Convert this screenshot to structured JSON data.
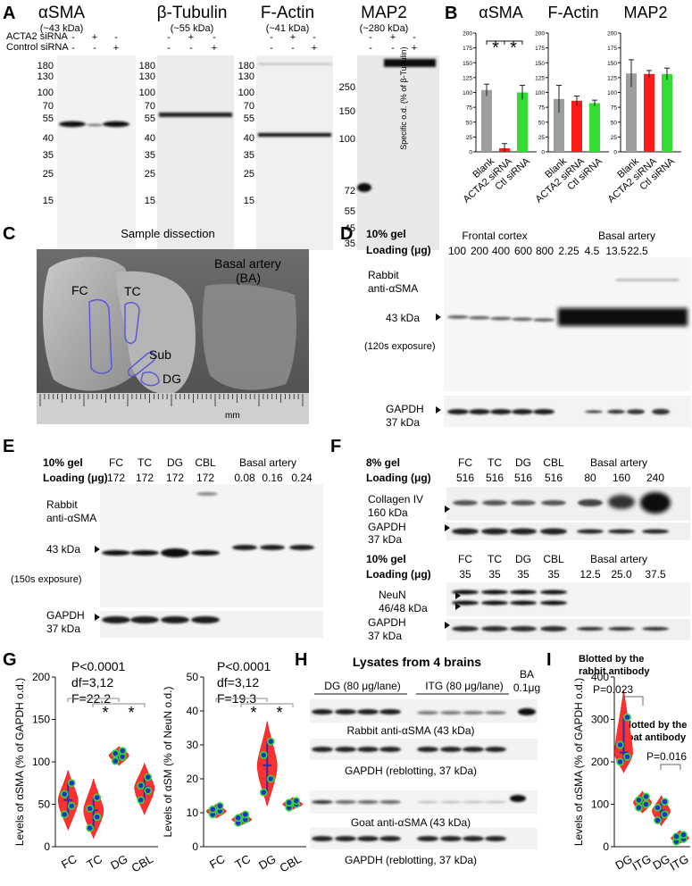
{
  "panels": {
    "A": {
      "letter": "A",
      "gels": [
        {
          "title": "αSMA",
          "kda": "(~43 kDa)"
        },
        {
          "title": "β-Tubulin",
          "kda": "(~55 kDa)"
        },
        {
          "title": "F-Actin",
          "kda": "(~41 kDa)"
        },
        {
          "title": "MAP2",
          "kda": "(~280 kDa)"
        }
      ],
      "row_labels": [
        "ACTA2 siRNA",
        "Control siRNA"
      ],
      "row1_signs": [
        "-",
        "+",
        "-"
      ],
      "row2_signs": [
        "-",
        "-",
        "+"
      ],
      "ladder1": [
        "180",
        "130",
        "100",
        "70",
        "55",
        "40",
        "35",
        "25",
        "15"
      ],
      "ladder_map2": [
        "250",
        "150",
        "100",
        "72",
        "55",
        "45",
        "35"
      ]
    },
    "B": {
      "letter": "B",
      "ylabel": "Specific o.d. (% of β-Tubulin)",
      "yticks": [
        "0",
        "25",
        "50",
        "75",
        "100",
        "125",
        "150",
        "175",
        "200"
      ],
      "sig": "*",
      "categories": [
        "Blank",
        "ACTA2 siRNA",
        "Ctl siRNA"
      ]
    },
    "C": {
      "letter": "C",
      "title": "Sample dissection",
      "labels": {
        "fc": "FC",
        "tc": "TC",
        "sub": "Sub",
        "dg": "DG",
        "ba1": "Basal artery",
        "ba2": "(BA)",
        "mm": "mm"
      }
    },
    "D": {
      "letter": "D",
      "gel": "10% gel",
      "loading": "Loading (μg)",
      "group1": "Frontal cortex",
      "group2": "Basal artery",
      "loads": [
        "100",
        "200",
        "400",
        "600",
        "800",
        "2.25",
        "4.5",
        "13.5",
        "22.5"
      ],
      "ab1": "Rabbit",
      "ab2": "anti-αSMA",
      "band": "43 kDa",
      "exposure": "(120s exposure)",
      "gapdh1": "GAPDH",
      "gapdh2": "37 kDa"
    },
    "E": {
      "letter": "E",
      "gel": "10% gel",
      "loading": "Loading (μg)",
      "lanes": [
        "FC",
        "TC",
        "DG",
        "CBL",
        "Basal artery"
      ],
      "loads": [
        "172",
        "172",
        "172",
        "172",
        "0.08",
        "0.16",
        "0.24"
      ],
      "ab1": "Rabbit",
      "ab2": "anti-αSMA",
      "band": "43 kDa",
      "exposure": "(150s exposure)",
      "gapdh1": "GAPDH",
      "gapdh2": "37 kDa"
    },
    "F": {
      "letter": "F",
      "gel1": "8% gel",
      "gel2": "10% gel",
      "loading": "Loading (μg)",
      "lanes": [
        "FC",
        "TC",
        "DG",
        "CBL",
        "Basal artery"
      ],
      "loads1": [
        "516",
        "516",
        "516",
        "516",
        "80",
        "160",
        "240"
      ],
      "loads2": [
        "35",
        "35",
        "35",
        "35",
        "12.5",
        "25.0",
        "37.5"
      ],
      "col1": "Collagen IV",
      "col2": "160 kDa",
      "gapdh1": "GAPDH",
      "gapdh2": "37 kDa",
      "neun1": "NeuN",
      "neun2": "46/48 kDa"
    },
    "G": {
      "letter": "G",
      "left": {
        "stats": [
          "P<0.0001",
          "df=3,12",
          "F=22.2"
        ],
        "ylabel": "Levels of αSMA (% of GAPDH o.d.)",
        "yticks": [
          "0",
          "50",
          "100",
          "150",
          "200"
        ]
      },
      "right": {
        "stats": [
          "P<0.0001",
          "df=3,12",
          "F=19.3"
        ],
        "ylabel": "Levels of αSM (% of NeuN o.d.)",
        "yticks": [
          "0",
          "10",
          "20",
          "30",
          "40",
          "50"
        ]
      },
      "categories": [
        "FC",
        "TC",
        "DG",
        "CBL"
      ],
      "sig": "*"
    },
    "H": {
      "letter": "H",
      "title": "Lysates from 4 brains",
      "dg": "DG (80 μg/lane)",
      "itg": "ITG (80 μg/lane)",
      "ba1": "BA",
      "ba2": "0.1μg",
      "rabbit": "Rabbit anti-αSMA (43 kDa)",
      "gapdh": "GAPDH (reblotting, 37 kDa)",
      "goat": "Goat anti-αSMA (43 kDa)"
    },
    "I": {
      "letter": "I",
      "title1a": "Blotted by the",
      "title1b": "rabbit antibody",
      "title2a": "Blotted by the",
      "title2b": "goat antibody",
      "p1": "P=0.023",
      "p2": "P=0.016",
      "ylabel": "Levels of αSMA (% of GAPDH o.d.)",
      "yticks": [
        "0",
        "100",
        "200",
        "300",
        "400"
      ],
      "categories": [
        "DG",
        "ITG",
        "DG",
        "ITG"
      ]
    }
  },
  "chart_data": [
    {
      "type": "bar",
      "panel": "B",
      "title": "αSMA",
      "categories": [
        "Blank",
        "ACTA2 siRNA",
        "Ctl siRNA"
      ],
      "values": [
        104,
        6,
        100
      ],
      "errors": [
        10,
        8,
        12
      ],
      "colors": [
        "#9e9e9e",
        "#ff1a1a",
        "#33dd33"
      ],
      "ylim": [
        0,
        200
      ]
    },
    {
      "type": "bar",
      "panel": "B",
      "title": "F-Actin",
      "categories": [
        "Blank",
        "ACTA2 siRNA",
        "Ctl siRNA"
      ],
      "values": [
        89,
        86,
        82
      ],
      "errors": [
        23,
        8,
        5
      ],
      "colors": [
        "#9e9e9e",
        "#ff1a1a",
        "#33dd33"
      ],
      "ylim": [
        0,
        200
      ]
    },
    {
      "type": "bar",
      "panel": "B",
      "title": "MAP2",
      "categories": [
        "Blank",
        "ACTA2 siRNA",
        "Ctl siRNA"
      ],
      "values": [
        132,
        131,
        131
      ],
      "errors": [
        23,
        6,
        10
      ],
      "colors": [
        "#9e9e9e",
        "#ff1a1a",
        "#33dd33"
      ],
      "ylim": [
        0,
        200
      ]
    },
    {
      "type": "violin",
      "panel": "G-left",
      "categories": [
        "FC",
        "TC",
        "DG",
        "CBL"
      ],
      "ylim": [
        0,
        200
      ],
      "medians": [
        55,
        43,
        108,
        70
      ],
      "ranges": [
        [
          20,
          90
        ],
        [
          10,
          80
        ],
        [
          96,
          118
        ],
        [
          38,
          98
        ]
      ],
      "points": [
        [
          38,
          48,
          62,
          75
        ],
        [
          22,
          35,
          45,
          58
        ],
        [
          101,
          106,
          110,
          113
        ],
        [
          55,
          66,
          72,
          82
        ]
      ]
    },
    {
      "type": "violin",
      "panel": "G-right",
      "categories": [
        "FC",
        "TC",
        "DG",
        "CBL"
      ],
      "ylim": [
        0,
        50
      ],
      "medians": [
        10.5,
        8,
        24,
        12.5
      ],
      "ranges": [
        [
          8.5,
          12.5
        ],
        [
          6.5,
          10
        ],
        [
          12,
          37
        ],
        [
          11,
          14.5
        ]
      ],
      "points": [
        [
          9.5,
          10.5,
          11,
          12
        ],
        [
          7,
          8,
          8.5,
          9.5
        ],
        [
          16,
          20,
          27,
          31
        ],
        [
          11.5,
          12.5,
          13,
          13.5
        ]
      ]
    },
    {
      "type": "violin",
      "panel": "I",
      "categories": [
        "DG",
        "ITG",
        "DG",
        "ITG"
      ],
      "ylim": [
        0,
        400
      ],
      "medians": [
        222,
        105,
        85,
        20
      ],
      "ranges": [
        [
          175,
          370
        ],
        [
          80,
          130
        ],
        [
          50,
          120
        ],
        [
          8,
          38
        ]
      ],
      "points": [
        [
          200,
          212,
          240,
          305
        ],
        [
          92,
          100,
          110,
          118
        ],
        [
          62,
          76,
          92,
          106
        ],
        [
          12,
          18,
          24,
          28
        ]
      ]
    }
  ]
}
